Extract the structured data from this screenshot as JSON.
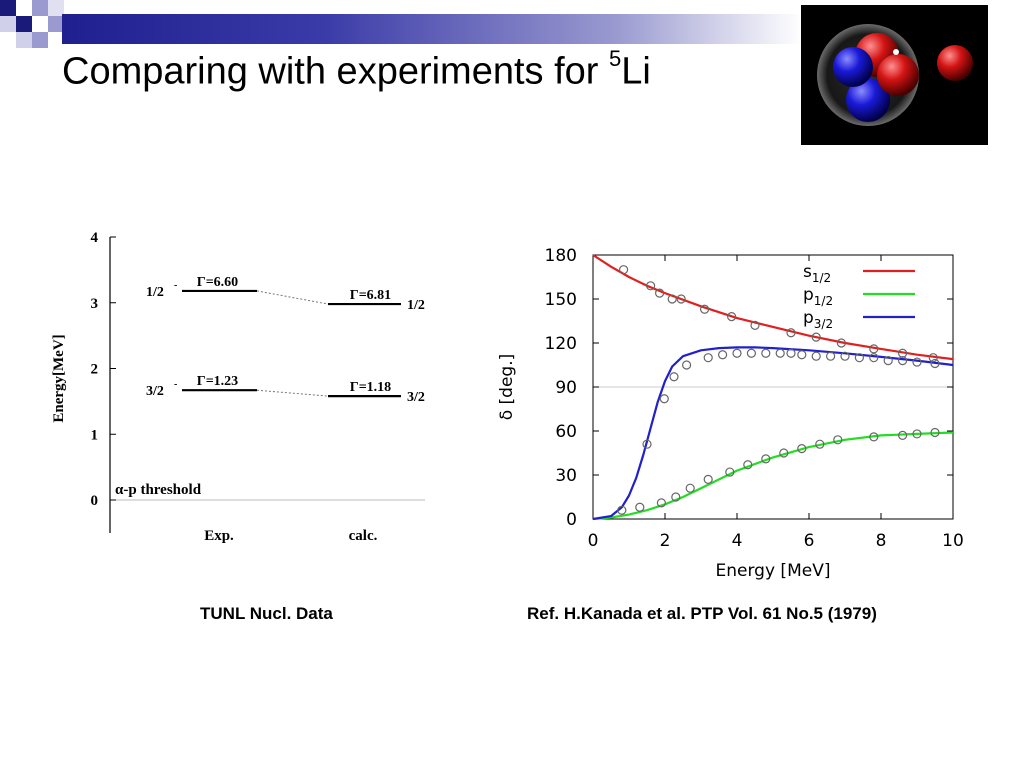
{
  "slide": {
    "title_main": "Comparing with experiments for ",
    "title_sup": "5",
    "title_tail": "Li",
    "caption_left": "TUNL Nucl. Data",
    "caption_right": "Ref. H.Kanada et al. PTP Vol. 61 No.5 (1979)",
    "nucleus_image": "nucleus-illustration"
  },
  "chart_data": [
    {
      "type": "level-scheme",
      "ylabel": "Energy[MeV]",
      "ylim": [
        0,
        4
      ],
      "yticks": [
        "0",
        "1",
        "2",
        "3",
        "4"
      ],
      "threshold_label": "α-p threshold",
      "columns": [
        "Exp.",
        "calc."
      ],
      "levels": [
        {
          "column": "Exp.",
          "energy": 3.18,
          "spin": "1/2",
          "parity": "-",
          "width": "Γ=6.60"
        },
        {
          "column": "Exp.",
          "energy": 1.67,
          "spin": "3/2",
          "parity": "-",
          "width": "Γ=1.23"
        },
        {
          "column": "calc.",
          "energy": 2.98,
          "spin": "1/2",
          "parity": "-",
          "width": "Γ=6.81"
        },
        {
          "column": "calc.",
          "energy": 1.58,
          "spin": "3/2",
          "parity": "-",
          "width": "Γ=1.18"
        }
      ]
    },
    {
      "type": "line",
      "xlabel": "Energy [MeV]",
      "ylabel": "δ [deg.]",
      "xlim": [
        0,
        10
      ],
      "ylim": [
        0,
        180
      ],
      "xticks": [
        "0",
        "2",
        "4",
        "6",
        "8",
        "10"
      ],
      "yticks": [
        "0",
        "30",
        "60",
        "90",
        "120",
        "150",
        "180"
      ],
      "legend_position": "top-right",
      "series": [
        {
          "name": "s1/2",
          "name_base": "s",
          "name_sub": "1/2",
          "color": "#e02020",
          "x": [
            0,
            0.5,
            1,
            1.5,
            2,
            3,
            4,
            5,
            6,
            7,
            8,
            9,
            10
          ],
          "values": [
            180,
            172,
            165,
            159,
            154,
            145,
            137,
            131,
            125,
            120,
            116,
            112,
            109
          ]
        },
        {
          "name": "p1/2",
          "name_base": "p",
          "name_sub": "1/2",
          "color": "#22dd22",
          "x": [
            0,
            0.5,
            1,
            1.5,
            2,
            2.5,
            3,
            3.5,
            4,
            5,
            6,
            7,
            8,
            9,
            10
          ],
          "values": [
            0,
            1,
            3,
            6,
            10,
            15,
            21,
            27,
            33,
            42,
            49,
            54,
            57,
            58,
            59
          ]
        },
        {
          "name": "p3/2",
          "name_base": "p",
          "name_sub": "3/2",
          "color": "#2020cc",
          "x": [
            0,
            0.5,
            0.8,
            1,
            1.2,
            1.4,
            1.6,
            1.8,
            2,
            2.2,
            2.5,
            3,
            3.5,
            4,
            4.5,
            5,
            6,
            7,
            8,
            9,
            10
          ],
          "values": [
            0,
            2,
            8,
            16,
            28,
            44,
            62,
            80,
            94,
            104,
            111,
            115,
            116.5,
            117,
            117,
            116.5,
            115,
            113,
            110.5,
            108,
            105
          ]
        },
        {
          "name": "",
          "kind": "markers",
          "x": [
            0.85,
            1.6,
            1.85,
            2.2,
            2.45,
            3.1,
            3.85,
            4.5,
            5.5,
            6.2,
            6.9,
            7.8,
            8.6,
            9.45
          ],
          "values": [
            170,
            159,
            154,
            150,
            150,
            143,
            138,
            132,
            127,
            124,
            120,
            116,
            113,
            110
          ]
        },
        {
          "name": "",
          "kind": "markers",
          "x": [
            1.5,
            1.98,
            2.25,
            2.6,
            3.2,
            3.6,
            4.0,
            4.4,
            4.8,
            5.2,
            5.5,
            5.8,
            6.2,
            6.6,
            7.0,
            7.4,
            7.8,
            8.2,
            8.6,
            9.0,
            9.5
          ],
          "values": [
            51,
            82,
            97,
            105,
            110,
            112,
            113,
            113,
            113,
            113,
            113,
            112,
            111,
            111,
            111,
            110,
            110,
            108,
            108,
            107,
            106
          ]
        },
        {
          "name": "",
          "kind": "markers",
          "x": [
            0.8,
            1.3,
            1.9,
            2.3,
            2.7,
            3.2,
            3.8,
            4.3,
            4.8,
            5.3,
            5.8,
            6.3,
            6.8,
            7.8,
            8.6,
            9.0,
            9.5
          ],
          "values": [
            6,
            8,
            11,
            15,
            21,
            27,
            32,
            37,
            41,
            45,
            48,
            51,
            54,
            56,
            57,
            58,
            59
          ]
        }
      ]
    }
  ]
}
